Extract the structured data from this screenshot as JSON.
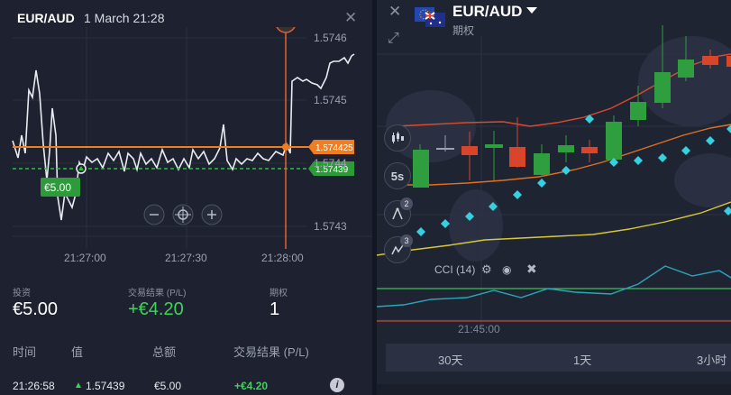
{
  "left_panel": {
    "pair": "EUR/AUD",
    "date": "1 March 21:28",
    "close_icon": "close-icon",
    "price_axis": [
      "1.5746",
      "1.5745",
      "1.5744",
      "1.5743"
    ],
    "time_axis": [
      "21:27:00",
      "21:27:30",
      "21:28:00"
    ],
    "current_price_tag": "1.574425",
    "entry_price_tag": "1.57439",
    "investment_tag": "€5.00",
    "zoom_out_icon": "minus-icon",
    "center_icon": "crosshair-icon",
    "zoom_in_icon": "plus-icon",
    "info": {
      "invest_label": "投资",
      "invest_value": "€5.00",
      "pl_label": "交易结果 (P/L)",
      "pl_value": "+€4.20",
      "options_label": "期权",
      "options_value": "1"
    },
    "table": {
      "headers": [
        "时间",
        "值",
        "总额",
        "交易结果 (P/L)"
      ],
      "rows": [
        {
          "time": "21:26:58",
          "value": "1.57439",
          "amount": "€5.00",
          "pl": "+€4.20"
        }
      ],
      "info_icon": "info-icon"
    }
  },
  "right_panel": {
    "pair": "EUR/AUD",
    "subtitle": "期权",
    "flag_icon": "eu-au-flag-icon",
    "close_icon": "close-icon",
    "expand_icon": "expand-icon",
    "tools": [
      {
        "icon": "candlestick-icon",
        "badge": ""
      },
      {
        "icon": "timeframe-label",
        "label": "5s",
        "badge": ""
      },
      {
        "icon": "compass-icon",
        "badge": "2"
      },
      {
        "icon": "indicator-icon",
        "badge": "3"
      }
    ],
    "cci_label": "CCI (14)",
    "time_label": "21:45:00",
    "periods": [
      "30天",
      "1天",
      "3小时"
    ]
  },
  "colors": {
    "rising": "#2e9e3e",
    "falling": "#d9452b",
    "current_line": "#f07d1f",
    "entry_line": "#26c13a",
    "psar": "#37d0e0"
  }
}
